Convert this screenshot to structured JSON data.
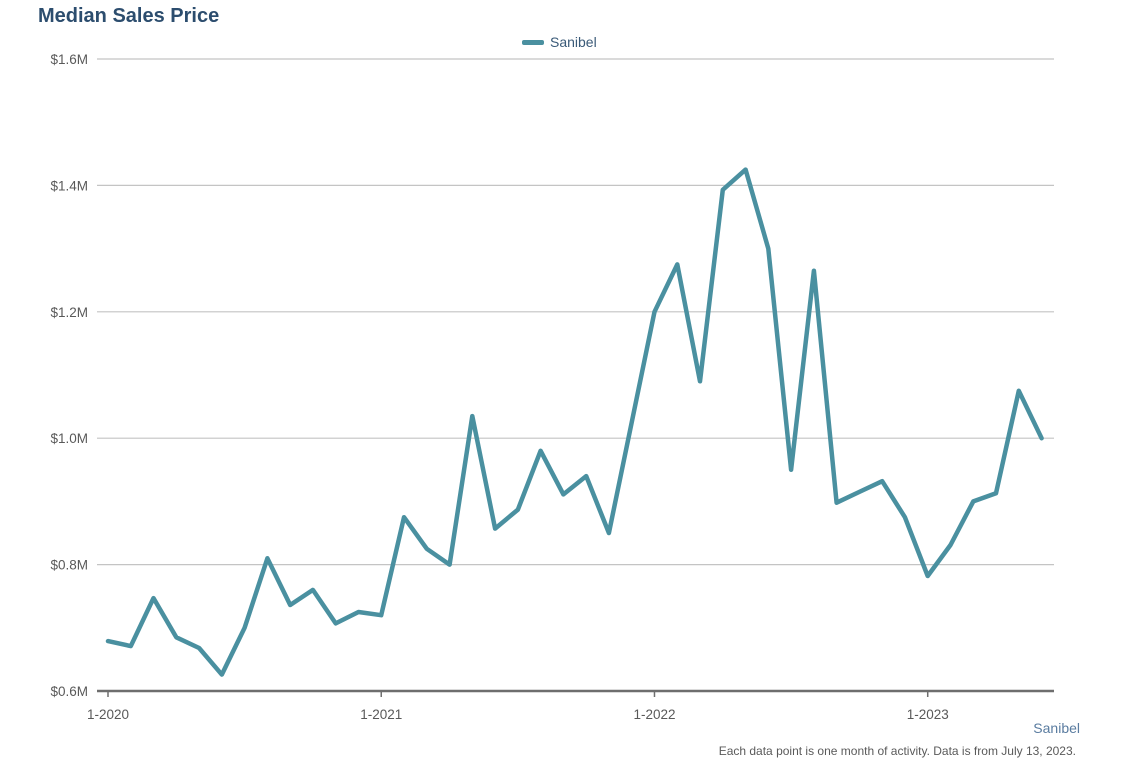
{
  "chart_data": {
    "type": "line",
    "title": "Median Sales Price",
    "xlabel": "",
    "ylabel": "",
    "ylim": [
      0.6,
      1.6
    ],
    "yticks": [
      0.6,
      0.8,
      1.0,
      1.2,
      1.4,
      1.6
    ],
    "ytick_labels": [
      "$0.6M",
      "$0.8M",
      "$1.0M",
      "$1.2M",
      "$1.4M",
      "$1.6M"
    ],
    "xtick_labels": [
      "1-2020",
      "1-2021",
      "1-2022",
      "1-2023"
    ],
    "grid": true,
    "legend_position": "top-center",
    "x": [
      "2020-01",
      "2020-02",
      "2020-03",
      "2020-04",
      "2020-05",
      "2020-06",
      "2020-07",
      "2020-08",
      "2020-09",
      "2020-10",
      "2020-11",
      "2020-12",
      "2021-01",
      "2021-02",
      "2021-03",
      "2021-04",
      "2021-05",
      "2021-06",
      "2021-07",
      "2021-08",
      "2021-09",
      "2021-10",
      "2021-11",
      "2021-12",
      "2022-01",
      "2022-02",
      "2022-03",
      "2022-04",
      "2022-05",
      "2022-06",
      "2022-07",
      "2022-08",
      "2022-09",
      "2022-10",
      "2022-11",
      "2022-12",
      "2023-01",
      "2023-02",
      "2023-03",
      "2023-04",
      "2023-05",
      "2023-06"
    ],
    "series": [
      {
        "name": "Sanibel",
        "color": "#4a90a0",
        "values": [
          0.679,
          0.671,
          0.747,
          0.685,
          0.668,
          0.626,
          0.7,
          0.81,
          0.736,
          0.76,
          0.707,
          0.725,
          0.72,
          0.875,
          0.825,
          0.8,
          1.035,
          0.857,
          0.887,
          0.98,
          0.911,
          0.94,
          0.85,
          1.025,
          1.2,
          1.275,
          1.09,
          1.393,
          1.425,
          1.3,
          0.95,
          1.265,
          0.898,
          0.915,
          0.932,
          0.875,
          0.782,
          0.831,
          0.9,
          0.913,
          1.075,
          1.0
        ]
      }
    ]
  },
  "region_label": "Sanibel",
  "footnote": "Each data point is one month of activity. Data is from July 13, 2023."
}
